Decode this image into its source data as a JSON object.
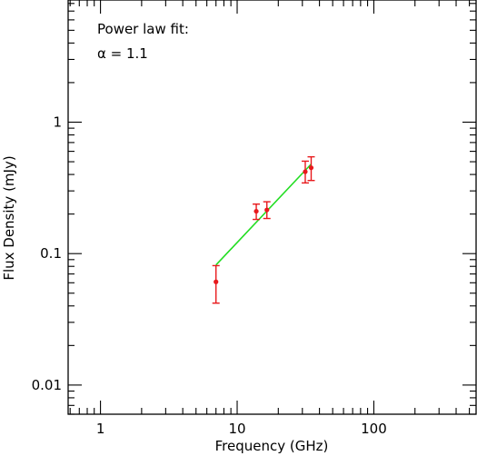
{
  "chart_data": {
    "type": "scatter",
    "title": "",
    "xlabel": "Frequency (GHz)",
    "ylabel": "Flux Density (mJy)",
    "x_scale": "log",
    "y_scale": "log",
    "xlim": [
      0.58,
      560
    ],
    "ylim": [
      0.006,
      8.5
    ],
    "x_ticks": [
      1,
      10,
      100
    ],
    "x_tick_labels": [
      "1",
      "10",
      "100"
    ],
    "y_ticks": [
      0.01,
      0.1,
      1
    ],
    "y_tick_labels": [
      "0.01",
      "0.1",
      "1"
    ],
    "grid": false,
    "annotations": [
      "Power law fit:",
      "α = 1.1"
    ],
    "colors": {
      "points": "#e8191c",
      "fit_line": "#22dd22",
      "axes": "#000000"
    },
    "series": [
      {
        "type": "scatter-errorbar",
        "points": [
          {
            "x": 7.0,
            "y": 0.061,
            "err_low": 0.042,
            "err_high": 0.081
          },
          {
            "x": 13.8,
            "y": 0.21,
            "err_low": 0.182,
            "err_high": 0.238
          },
          {
            "x": 16.5,
            "y": 0.215,
            "err_low": 0.185,
            "err_high": 0.248
          },
          {
            "x": 31.5,
            "y": 0.42,
            "err_low": 0.345,
            "err_high": 0.505
          },
          {
            "x": 34.8,
            "y": 0.45,
            "err_low": 0.36,
            "err_high": 0.545
          }
        ]
      },
      {
        "type": "line",
        "x": [
          7.0,
          34.8
        ],
        "y": [
          0.082,
          0.48
        ]
      }
    ]
  }
}
